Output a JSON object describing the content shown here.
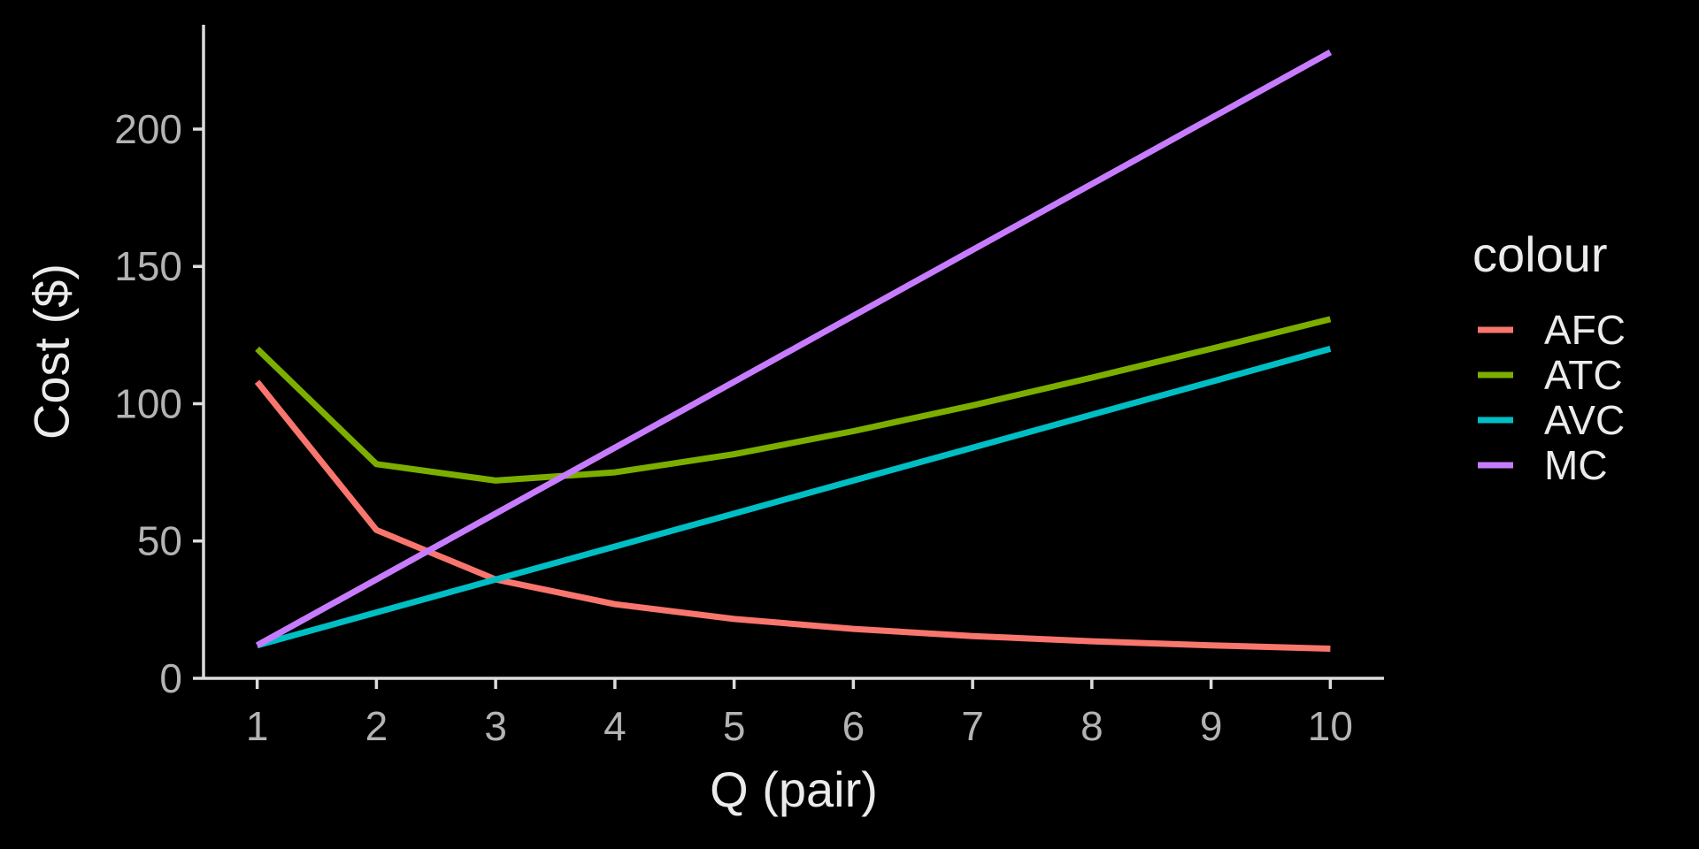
{
  "chart_data": {
    "type": "line",
    "title": "",
    "xlabel": "Q (pair)",
    "ylabel": "Cost ($)",
    "x": [
      1,
      2,
      3,
      4,
      5,
      6,
      7,
      8,
      9,
      10
    ],
    "xlim": [
      0.55,
      10.45
    ],
    "ylim": [
      0,
      238
    ],
    "x_ticks": [
      1,
      2,
      3,
      4,
      5,
      6,
      7,
      8,
      9,
      10
    ],
    "y_ticks": [
      0,
      50,
      100,
      150,
      200
    ],
    "grid": false,
    "legend": {
      "title": "colour",
      "position": "right"
    },
    "series": [
      {
        "name": "AFC",
        "color": "#F8766D",
        "values": [
          108,
          54,
          36,
          27,
          21.6,
          18,
          15.4,
          13.5,
          12,
          10.8
        ]
      },
      {
        "name": "ATC",
        "color": "#7CAE00",
        "values": [
          120,
          78,
          72,
          75,
          81.6,
          90,
          99.4,
          109.5,
          120,
          130.8
        ]
      },
      {
        "name": "AVC",
        "color": "#00BFC4",
        "values": [
          12,
          24,
          36,
          48,
          60,
          72,
          84,
          96,
          108,
          120
        ]
      },
      {
        "name": "MC",
        "color": "#C77CFF",
        "values": [
          12,
          36,
          60,
          84,
          108,
          132,
          156,
          180,
          204,
          228
        ]
      }
    ]
  }
}
